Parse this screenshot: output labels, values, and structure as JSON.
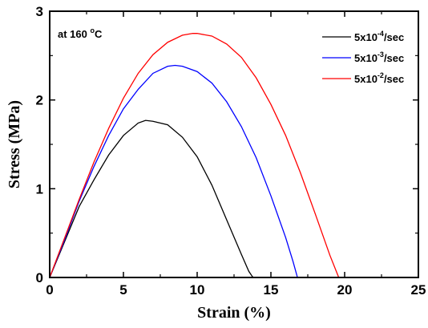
{
  "chart_data": {
    "type": "line",
    "title": "",
    "xlabel": "Strain (%)",
    "ylabel": "Stress (MPa)",
    "xlim": [
      0,
      25
    ],
    "ylim": [
      0,
      3
    ],
    "xticks": [
      0,
      5,
      10,
      15,
      20,
      25
    ],
    "yticks": [
      0,
      1,
      2,
      3
    ],
    "annotation": {
      "prefix": "at 160 ",
      "degree": "o",
      "suffix": "C"
    },
    "legend_position": "top-right",
    "series": [
      {
        "name": "5x10-4/sec",
        "label_base": "5x10",
        "label_exp": "-4",
        "label_unit": "/sec",
        "color": "#000000",
        "x": [
          0,
          0.5,
          1,
          2,
          3,
          4,
          5,
          6,
          6.5,
          7,
          8,
          9,
          10,
          11,
          12,
          13,
          13.5,
          13.7,
          13.8
        ],
        "y": [
          0,
          0.2,
          0.4,
          0.8,
          1.1,
          1.38,
          1.6,
          1.74,
          1.77,
          1.76,
          1.72,
          1.58,
          1.36,
          1.04,
          0.65,
          0.26,
          0.07,
          0.02,
          0
        ]
      },
      {
        "name": "5x10-3/sec",
        "label_base": "5x10",
        "label_exp": "-3",
        "label_unit": "/sec",
        "color": "#0000ff",
        "x": [
          0,
          1,
          2,
          3,
          4,
          5,
          6,
          7,
          8,
          8.5,
          9,
          10,
          11,
          12,
          13,
          14,
          15,
          16,
          16.5,
          16.8
        ],
        "y": [
          0,
          0.42,
          0.86,
          1.25,
          1.6,
          1.9,
          2.12,
          2.3,
          2.38,
          2.39,
          2.38,
          2.32,
          2.19,
          1.98,
          1.7,
          1.35,
          0.92,
          0.45,
          0.18,
          0
        ]
      },
      {
        "name": "5x10-2/sec",
        "label_base": "5x10",
        "label_exp": "-2",
        "label_unit": "/sec",
        "color": "#ff0000",
        "x": [
          0,
          1,
          2,
          3,
          4,
          5,
          6,
          7,
          8,
          9,
          9.7,
          10,
          11,
          12,
          13,
          14,
          15,
          16,
          17,
          18,
          19,
          19.6
        ],
        "y": [
          0,
          0.44,
          0.88,
          1.3,
          1.68,
          2.02,
          2.3,
          2.51,
          2.65,
          2.73,
          2.75,
          2.75,
          2.72,
          2.63,
          2.48,
          2.25,
          1.95,
          1.6,
          1.18,
          0.72,
          0.25,
          0
        ]
      }
    ]
  }
}
